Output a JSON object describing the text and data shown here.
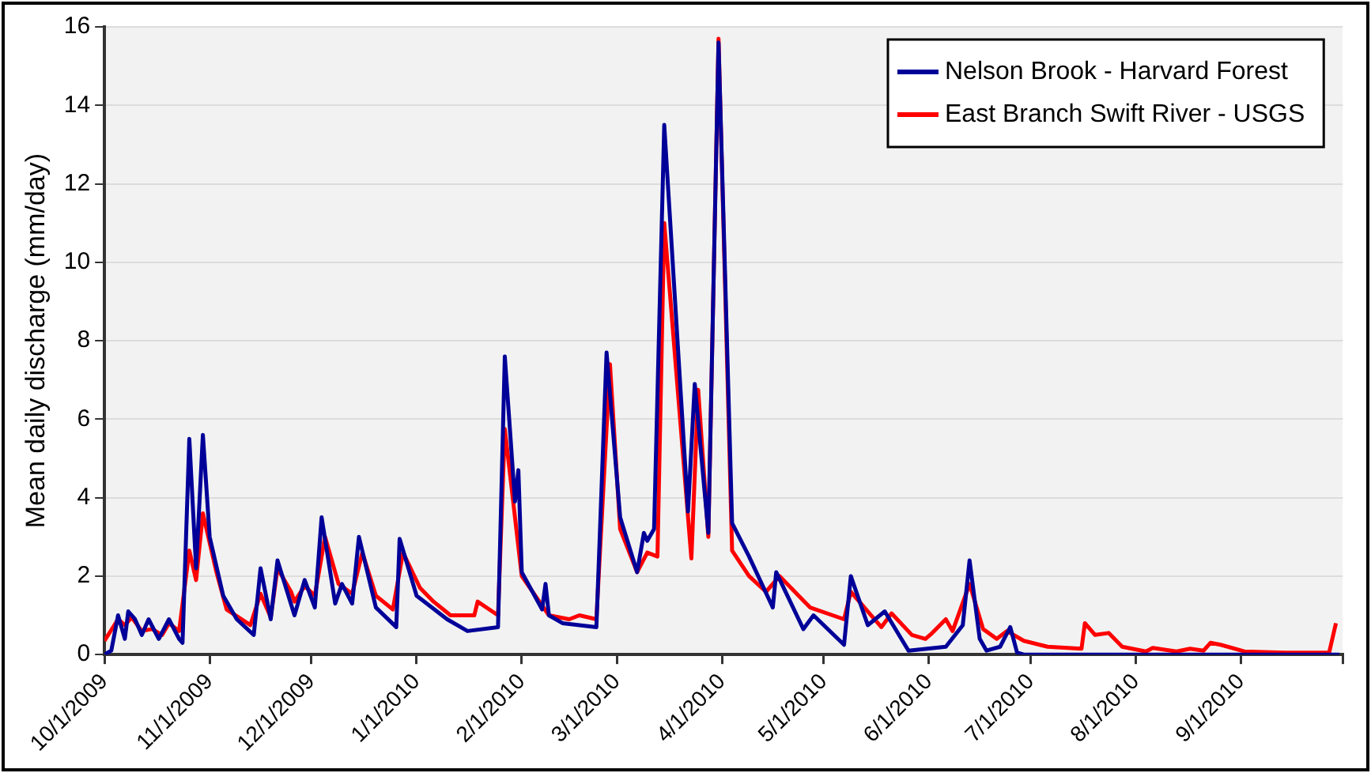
{
  "chart_data": {
    "type": "line",
    "ylabel": "Mean daily discharge (mm/day)",
    "xlim": [
      "2009-10-01",
      "2010-10-01"
    ],
    "xticks": [
      {
        "value": "2009-10-01",
        "label": "10/1/2009"
      },
      {
        "value": "2009-11-01",
        "label": "11/1/2009"
      },
      {
        "value": "2009-12-01",
        "label": "12/1/2009"
      },
      {
        "value": "2010-01-01",
        "label": "1/1/2010"
      },
      {
        "value": "2010-02-01",
        "label": "2/1/2010"
      },
      {
        "value": "2010-03-01",
        "label": "3/1/2010"
      },
      {
        "value": "2010-04-01",
        "label": "4/1/2010"
      },
      {
        "value": "2010-05-01",
        "label": "5/1/2010"
      },
      {
        "value": "2010-06-01",
        "label": "6/1/2010"
      },
      {
        "value": "2010-07-01",
        "label": "7/1/2010"
      },
      {
        "value": "2010-08-01",
        "label": "8/1/2010"
      },
      {
        "value": "2010-09-01",
        "label": "9/1/2010"
      },
      {
        "value": "2010-10-01",
        "label": null
      }
    ],
    "ylim": [
      0,
      16
    ],
    "yticks": [
      0,
      2,
      4,
      6,
      8,
      10,
      12,
      14,
      16
    ],
    "grid": "y",
    "legend": "top right",
    "marker": "none",
    "line_style": "solid",
    "series": [
      {
        "name": "Nelson Brook - Harvard Forest",
        "color": "#000099",
        "x": [
          "2009-10-01",
          "2009-10-03",
          "2009-10-05",
          "2009-10-07",
          "2009-10-08",
          "2009-10-10",
          "2009-10-12",
          "2009-10-14",
          "2009-10-17",
          "2009-10-20",
          "2009-10-23",
          "2009-10-24",
          "2009-10-26",
          "2009-10-28",
          "2009-10-30",
          "2009-11-01",
          "2009-11-05",
          "2009-11-09",
          "2009-11-14",
          "2009-11-16",
          "2009-11-19",
          "2009-11-21",
          "2009-11-26",
          "2009-11-29",
          "2009-12-02",
          "2009-12-04",
          "2009-12-08",
          "2009-12-10",
          "2009-12-13",
          "2009-12-15",
          "2009-12-20",
          "2009-12-26",
          "2009-12-27",
          "2010-01-01",
          "2010-01-10",
          "2010-01-16",
          "2010-01-25",
          "2010-01-27",
          "2010-01-30",
          "2010-01-31",
          "2010-02-01",
          "2010-02-07",
          "2010-02-08",
          "2010-02-09",
          "2010-02-13",
          "2010-02-23",
          "2010-02-26",
          "2010-03-02",
          "2010-03-07",
          "2010-03-09",
          "2010-03-10",
          "2010-03-12",
          "2010-03-15",
          "2010-03-22",
          "2010-03-24",
          "2010-03-28",
          "2010-03-31",
          "2010-04-04",
          "2010-04-09",
          "2010-04-16",
          "2010-04-17",
          "2010-04-25",
          "2010-04-28",
          "2010-05-07",
          "2010-05-09",
          "2010-05-14",
          "2010-05-19",
          "2010-05-26",
          "2010-06-06",
          "2010-06-11",
          "2010-06-13",
          "2010-06-16",
          "2010-06-18",
          "2010-06-22",
          "2010-06-25",
          "2010-06-27",
          "2010-06-29",
          "2010-09-30"
        ],
        "values": [
          0,
          0.1,
          1.0,
          0.4,
          1.1,
          0.9,
          0.5,
          0.9,
          0.4,
          0.9,
          0.4,
          0.3,
          5.5,
          2.2,
          5.6,
          3.0,
          1.5,
          0.9,
          0.5,
          2.2,
          0.9,
          2.4,
          1.0,
          1.9,
          1.2,
          3.5,
          1.3,
          1.8,
          1.3,
          3.0,
          1.2,
          0.7,
          2.95,
          1.5,
          0.9,
          0.6,
          0.7,
          7.6,
          3.9,
          4.7,
          2.1,
          1.15,
          1.8,
          1.0,
          0.8,
          0.7,
          7.7,
          3.5,
          2.1,
          3.1,
          2.9,
          3.2,
          13.5,
          3.65,
          6.9,
          3.1,
          15.6,
          3.35,
          2.5,
          1.2,
          2.1,
          0.65,
          1.0,
          0.25,
          2.0,
          0.75,
          1.1,
          0.1,
          0.2,
          0.75,
          2.4,
          0.4,
          0.1,
          0.2,
          0.7,
          0.05,
          0,
          0
        ]
      },
      {
        "name": "East Branch Swift River - USGS",
        "color": "#ff0000",
        "x": [
          "2009-10-01",
          "2009-10-05",
          "2009-10-07",
          "2009-10-09",
          "2009-10-12",
          "2009-10-15",
          "2009-10-18",
          "2009-10-20",
          "2009-10-23",
          "2009-10-26",
          "2009-10-28",
          "2009-10-30",
          "2009-11-03",
          "2009-11-06",
          "2009-11-13",
          "2009-11-16",
          "2009-11-19",
          "2009-11-21",
          "2009-11-25",
          "2009-11-26",
          "2009-11-29",
          "2009-12-02",
          "2009-12-05",
          "2009-12-09",
          "2009-12-13",
          "2009-12-16",
          "2009-12-20",
          "2009-12-25",
          "2009-12-28",
          "2010-01-02",
          "2010-01-06",
          "2010-01-11",
          "2010-01-18",
          "2010-01-19",
          "2010-01-25",
          "2010-01-27",
          "2010-02-01",
          "2010-02-09",
          "2010-02-15",
          "2010-02-18",
          "2010-02-23",
          "2010-02-27",
          "2010-03-02",
          "2010-03-07",
          "2010-03-10",
          "2010-03-13",
          "2010-03-15",
          "2010-03-23",
          "2010-03-25",
          "2010-03-28",
          "2010-03-31",
          "2010-04-04",
          "2010-04-09",
          "2010-04-14",
          "2010-04-18",
          "2010-04-27",
          "2010-05-07",
          "2010-05-09",
          "2010-05-15",
          "2010-05-18",
          "2010-05-21",
          "2010-05-27",
          "2010-05-31",
          "2010-06-02",
          "2010-06-06",
          "2010-06-08",
          "2010-06-13",
          "2010-06-17",
          "2010-06-21",
          "2010-06-24",
          "2010-06-29",
          "2010-07-06",
          "2010-07-16",
          "2010-07-17",
          "2010-07-20",
          "2010-07-24",
          "2010-07-28",
          "2010-08-04",
          "2010-08-06",
          "2010-08-13",
          "2010-08-17",
          "2010-08-21",
          "2010-08-23",
          "2010-08-26",
          "2010-09-02",
          "2010-09-14",
          "2010-09-27",
          "2010-09-29"
        ],
        "values": [
          0.35,
          0.9,
          0.75,
          0.95,
          0.6,
          0.65,
          0.5,
          0.8,
          0.6,
          2.65,
          1.9,
          3.6,
          2.1,
          1.15,
          0.75,
          1.55,
          0.95,
          2.2,
          1.6,
          1.35,
          1.75,
          1.5,
          3.0,
          1.8,
          1.55,
          2.6,
          1.5,
          1.15,
          2.6,
          1.7,
          1.35,
          1.0,
          1.0,
          1.35,
          1.0,
          5.75,
          2.0,
          1.0,
          0.9,
          1.0,
          0.9,
          7.4,
          3.2,
          2.1,
          2.6,
          2.5,
          11.0,
          2.45,
          6.75,
          3.0,
          15.7,
          2.65,
          2.0,
          1.6,
          2.0,
          1.2,
          0.9,
          1.6,
          1.0,
          0.7,
          1.05,
          0.5,
          0.4,
          0.55,
          0.9,
          0.6,
          1.8,
          0.65,
          0.4,
          0.6,
          0.35,
          0.2,
          0.15,
          0.8,
          0.5,
          0.55,
          0.2,
          0.08,
          0.17,
          0.08,
          0.15,
          0.1,
          0.3,
          0.25,
          0.08,
          0.05,
          0.05,
          0.8
        ]
      }
    ]
  }
}
